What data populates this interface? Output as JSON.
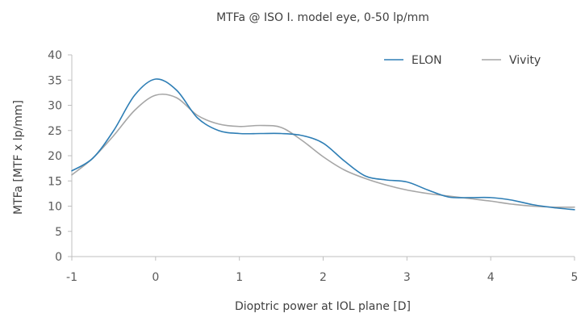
{
  "chart_data": {
    "type": "line",
    "title": "MTFa @ ISO I. model eye, 0-50 lp/mm",
    "xlabel": "Dioptric power at IOL plane [D]",
    "ylabel": "MTFa [MTF x lp/mm]",
    "xlim": [
      -1,
      5
    ],
    "ylim": [
      0,
      40
    ],
    "x_ticks": [
      "-1",
      "0",
      "1",
      "2",
      "3",
      "4",
      "5"
    ],
    "y_ticks": [
      "0",
      "5",
      "10",
      "15",
      "20",
      "25",
      "30",
      "35",
      "40"
    ],
    "grid": false,
    "legend_position": "top-right",
    "series": [
      {
        "name": "ELON",
        "color": "#2e7eb5",
        "x": [
          -1,
          -0.75,
          -0.5,
          -0.25,
          0,
          0.25,
          0.5,
          0.75,
          1,
          1.25,
          1.5,
          1.75,
          2,
          2.25,
          2.5,
          2.75,
          3,
          3.25,
          3.5,
          3.75,
          4,
          4.25,
          4.5,
          4.75,
          5
        ],
        "y": [
          17,
          19.5,
          25,
          32,
          35.2,
          33,
          27.5,
          25,
          24.4,
          24.4,
          24.4,
          24,
          22.5,
          19,
          16,
          15.2,
          14.8,
          13.2,
          11.8,
          11.7,
          11.7,
          11.2,
          10.3,
          9.7,
          9.3
        ]
      },
      {
        "name": "Vivity",
        "color": "#a6a6a6",
        "x": [
          -1,
          -0.75,
          -0.5,
          -0.25,
          0,
          0.25,
          0.5,
          0.75,
          1,
          1.25,
          1.5,
          1.75,
          2,
          2.25,
          2.5,
          2.75,
          3,
          3.25,
          3.5,
          3.75,
          4,
          4.25,
          4.5,
          4.75,
          5
        ],
        "y": [
          16.2,
          19.5,
          24,
          29,
          32,
          31.5,
          28,
          26.3,
          25.8,
          26,
          25.6,
          23,
          19.8,
          17.2,
          15.5,
          14.2,
          13.2,
          12.5,
          12,
          11.5,
          11,
          10.4,
          10,
          9.8,
          9.8
        ]
      }
    ]
  }
}
